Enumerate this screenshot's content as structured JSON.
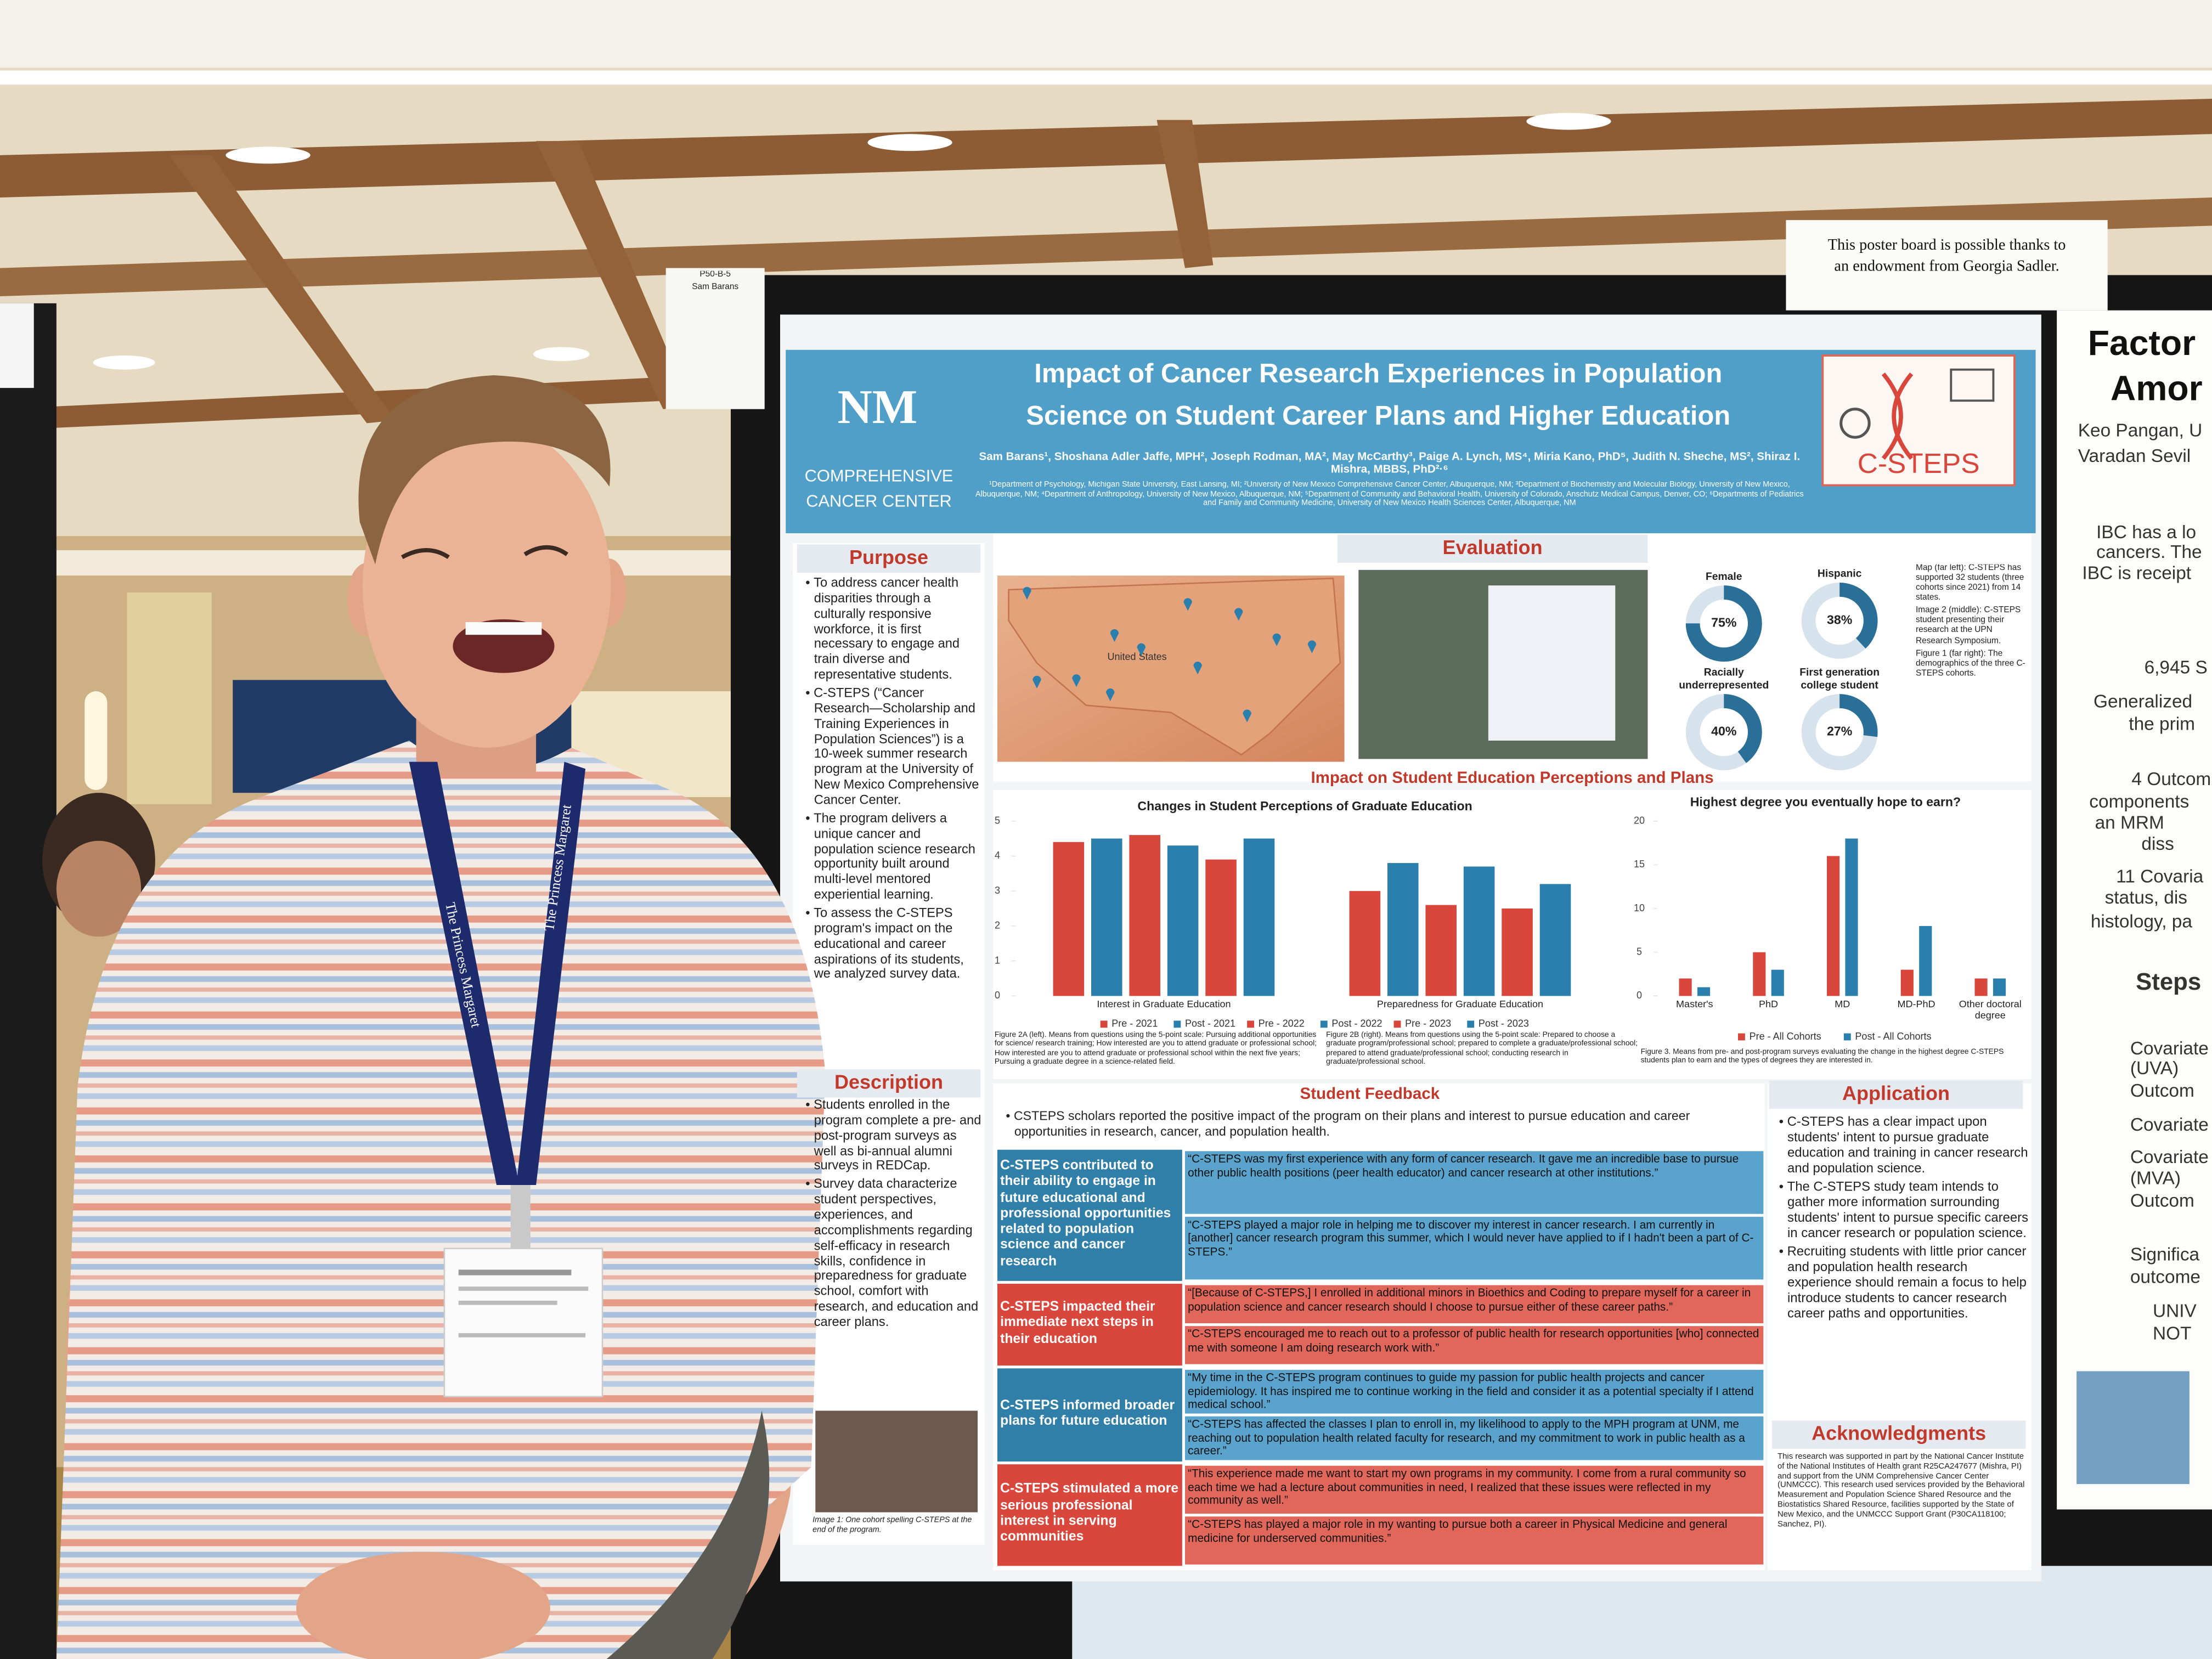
{
  "background_sign": [
    "This poster board is possible thanks to",
    "an endowment from Georgia Sadler."
  ],
  "board_tag": [
    "P50-B-5",
    "Sam Barans"
  ],
  "lanyard": "The Princess Margaret",
  "poster": {
    "title": [
      "Impact of Cancer Research Experiences in Population",
      "Science on Student Career Plans and Higher Education"
    ],
    "logo": [
      "NM",
      "COMPREHENSIVE",
      "CANCER CENTER"
    ],
    "program_logo": "C-STEPS",
    "authors": "Sam Barans¹, Shoshana Adler Jaffe, MPH², Joseph Rodman, MA², May McCarthy³, Paige A. Lynch, MS⁴, Miria Kano, PhD⁵, Judith N. Sheche, MS², Shiraz I. Mishra, MBBS, PhD²·⁶",
    "affiliations": "¹Department of Psychology, Michigan State University, East Lansing, MI; ²University of New Mexico Comprehensive Cancer Center, Albuquerque, NM; ³Department of Biochemistry and Molecular Biology, University of New Mexico, Albuquerque, NM; ⁴Department of Anthropology, University of New Mexico, Albuquerque, NM; ⁵Department of Community and Behavioral Health, University of Colorado, Anschutz Medical Campus, Denver, CO; ⁶Departments of Pediatrics and Family and Community Medicine, University of New Mexico Health Sciences Center, Albuquerque, NM",
    "purpose": {
      "heading": "Purpose",
      "bullets": [
        "To address cancer health disparities through a culturally responsive workforce, it is first necessary to engage and train diverse and representative students.",
        "C-STEPS (“Cancer Research—Scholarship and Training Experiences in Population Sciences”) is a 10-week summer research program at the University of New Mexico Comprehensive Cancer Center.",
        "The program delivers a unique cancer and population science research opportunity built around multi-level mentored experiential learning.",
        "To assess the C-STEPS program's impact on the educational and career aspirations of its students, we analyzed survey data."
      ]
    },
    "description": {
      "heading": "Description",
      "bullets": [
        "Students enrolled in the program complete a pre- and post-program surveys as well as bi-annual alumni surveys in REDCap.",
        "Survey data characterize student perspectives, experiences, and accomplishments regarding self-efficacy in research skills, confidence in preparedness for graduate school, comfort with research, and education and career plans."
      ],
      "caption": "Image 1: One cohort spelling C-STEPS at the end of the program."
    },
    "evaluation": {
      "heading": "Evaluation",
      "map_labels": [
        "United States"
      ],
      "captions": [
        "Map (far left): C-STEPS has supported 32 students (three cohorts since 2021) from 14 states.",
        "Image 2 (middle): C-STEPS student presenting their research at the UPN Research Symposium.",
        "Figure 1 (far right): The demographics of the three C-STEPS cohorts."
      ],
      "demographics": [
        {
          "label": "Female",
          "value": 75,
          "value_label": "75%"
        },
        {
          "label": "Hispanic",
          "value": 38,
          "value_label": "38%"
        },
        {
          "label": "Racially underrepresented",
          "value": 40,
          "value_label": "40%"
        },
        {
          "label": "First generation college student",
          "value": 27,
          "value_label": "27%"
        }
      ]
    },
    "impact": {
      "heading": "Impact on Student Education Perceptions and Plans",
      "figures": [
        {
          "type": "bar",
          "title": "Changes in Student Perceptions of Graduate Education",
          "categories": [
            "Interest in Graduate Education",
            "Preparedness for Graduate Education"
          ],
          "series": [
            {
              "name": "Pre - 2021",
              "color": "#d8463c",
              "values": [
                4.4,
                3.0
              ]
            },
            {
              "name": "Post - 2021",
              "color": "#2b7fad",
              "values": [
                4.5,
                3.8
              ]
            },
            {
              "name": "Pre - 2022",
              "color": "#d8463c",
              "values": [
                4.6,
                2.6
              ]
            },
            {
              "name": "Post - 2022",
              "color": "#2b7fad",
              "values": [
                4.3,
                3.7
              ]
            },
            {
              "name": "Pre - 2023",
              "color": "#d8463c",
              "values": [
                3.9,
                2.5
              ]
            },
            {
              "name": "Post - 2023",
              "color": "#2b7fad",
              "values": [
                4.5,
                3.2
              ]
            }
          ],
          "ylim": [
            0,
            5
          ],
          "yticks": [
            0,
            1,
            2,
            3,
            4,
            5
          ],
          "caption": "Figure 2A (left). Means from questions using the 5-point scale: Pursuing additional opportunities for science/ research training; How interested are you to attend graduate or professional school; How interested are you to attend graduate or professional school within the next five years; Pursuing a graduate degree in a science-related field.",
          "caption_2": "Figure 2B (right). Means from questions using the 5-point scale: Prepared to choose a graduate program/professional school; prepared to complete a graduate/professional school; prepared to attend graduate/professional school; conducting research in graduate/professional school."
        },
        {
          "type": "bar",
          "title": "Highest degree you eventually hope to earn?",
          "categories": [
            "Master's",
            "PhD",
            "MD",
            "MD-PhD",
            "Other doctoral degree"
          ],
          "series": [
            {
              "name": "Pre - All Cohorts",
              "color": "#d8463c",
              "values": [
                2,
                5,
                16,
                3,
                2
              ]
            },
            {
              "name": "Post - All Cohorts",
              "color": "#2b7fad",
              "values": [
                1,
                3,
                18,
                8,
                2
              ]
            }
          ],
          "ylim": [
            0,
            20
          ],
          "yticks": [
            0,
            5,
            10,
            15,
            20
          ],
          "caption": "Figure 3. Means from pre- and post-program surveys evaluating the change in the highest degree C-STEPS students plan to earn and the types of degrees they are interested in."
        }
      ]
    },
    "feedback": {
      "heading": "Student Feedback",
      "intro": "CSTEPS scholars reported the positive impact of the program on their plans and interest to pursue education and career opportunities in research, cancer, and population health.",
      "themes": [
        {
          "label": "C-STEPS contributed to their ability to engage in future educational and professional opportunities related to population science and cancer research",
          "quotes": [
            "“C-STEPS was my first experience with any form of cancer research. It gave me an incredible base to pursue other public health positions (peer health educator) and cancer research at other institutions.”",
            "“C-STEPS played a major role in helping me to discover my interest in cancer research. I am currently in [another] cancer research program this summer, which I would never have applied to if I hadn't been a part of C-STEPS.”"
          ]
        },
        {
          "label": "C-STEPS impacted their immediate next steps in their education",
          "quotes": [
            "“[Because of C-STEPS,] I enrolled in additional minors in Bioethics and Coding to prepare myself for a career in population science and cancer research should I choose to pursue either of these career paths.”",
            "“C-STEPS encouraged me to reach out to a professor of public health for research opportunities [who] connected me with someone I am doing research work with.”"
          ]
        },
        {
          "label": "C-STEPS informed broader plans for future education",
          "quotes": [
            "“My time in the C-STEPS program continues to guide my passion for public health projects and cancer epidemiology. It has inspired me to continue working in the field and consider it as a potential specialty if I attend medical school.”",
            "“C-STEPS has affected the classes I plan to enroll in, my likelihood to apply to the MPH program at UNM, me reaching out to population health related faculty for research, and my commitment to work in public health as a career.”"
          ]
        },
        {
          "label": "C-STEPS stimulated a more serious professional interest in serving communities",
          "quotes": [
            "“This experience made me want to start my own programs in my community. I come from a rural community so each time we had a lecture about communities in need, I realized that these issues were reflected in my community as well.”",
            "“C-STEPS has played a major role in my wanting to pursue both a career in Physical Medicine and general medicine for underserved communities.”"
          ]
        }
      ]
    },
    "application": {
      "heading": "Application",
      "bullets": [
        "C-STEPS has a clear impact upon students' intent to pursue graduate education and training in cancer research and population science.",
        "The C-STEPS study team intends to gather more information surrounding students' intent to pursue specific careers in cancer research or population science.",
        "Recruiting students with little prior cancer and population health research experience should remain a focus to help introduce students to cancer research career paths and opportunities."
      ]
    },
    "acknowledgments": {
      "heading": "Acknowledgments",
      "text": "This research was supported in part by the National Cancer Institute of the National Institutes of Health grant R25CA247677 (Mishra, PI) and support from the UNM Comprehensive Cancer Center (UNMCCC). This research used services provided by the Behavioral Measurement and Population Science Shared Resource and the Biostatistics Shared Resource, facilities supported by the State of New Mexico, and the UNMCCC Support Grant (P30CA118100; Sanchez, PI)."
    }
  },
  "neighbor_poster": {
    "title": [
      "Factor",
      "Amor"
    ],
    "lines": [
      "Keo Pangan, U",
      "Varadan Sevil",
      "IBC has a lo",
      "cancers. The",
      "IBC is receipt",
      "6,945 S",
      "Generalized",
      "the prim",
      "4 Outcom",
      "components",
      "an MRM",
      "diss",
      "11 Covaria",
      "status, dis",
      "histology, pa",
      "Steps",
      "Covariate",
      "(UVA)",
      "Outcom",
      "Covariate",
      "Covariate",
      "(MVA)",
      "Outcom",
      "Significa",
      "outcome",
      "UNIV",
      "NOT"
    ]
  }
}
